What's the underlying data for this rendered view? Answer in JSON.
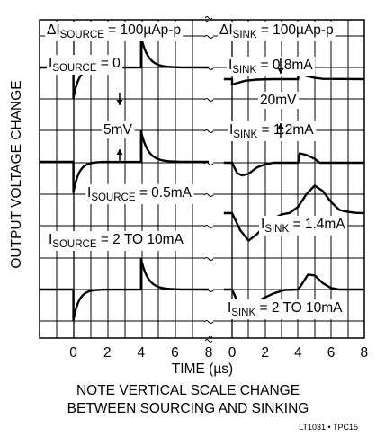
{
  "chart_data": {
    "type": "line",
    "y_axis_label": "OUTPUT VOLTAGE CHANGE",
    "x_axis_label": "TIME (µs)",
    "x_ticks_left": [
      "0",
      "2",
      "4",
      "6",
      "8"
    ],
    "x_ticks_right": [
      "0",
      "2",
      "4",
      "6",
      "8"
    ],
    "panel_headers": {
      "source": "ΔI_SOURCE = 100µAp-p",
      "sink": "ΔI_SINK = 100µAp-p"
    },
    "scale_labels": {
      "source": "5mV",
      "sink": "20mV"
    },
    "source_panel": {
      "x_range": [
        -2,
        8
      ],
      "series": [
        {
          "name": "I_SOURCE = 0",
          "t": [
            -2,
            0,
            0,
            0.3,
            0.6,
            1,
            1.5,
            2,
            4,
            4,
            4.3,
            4.7,
            5.2,
            6,
            8
          ],
          "v": [
            0,
            0,
            -3.8,
            -1.8,
            -0.9,
            -0.4,
            -0.1,
            0,
            0,
            3.8,
            1.8,
            0.8,
            0.3,
            0.05,
            0
          ]
        },
        {
          "name": "I_SOURCE = 0.5mA",
          "t": [
            -2,
            0,
            0,
            0.3,
            0.6,
            1,
            1.5,
            2,
            4,
            4,
            4.3,
            4.7,
            5.2,
            6,
            8
          ],
          "v": [
            0,
            0,
            -3.8,
            -1.8,
            -0.9,
            -0.4,
            -0.1,
            0,
            0,
            3.8,
            1.8,
            0.8,
            0.3,
            0.05,
            0
          ]
        },
        {
          "name": "I_SOURCE = 2 TO 10mA",
          "t": [
            -2,
            0,
            0,
            0.3,
            0.6,
            1,
            1.5,
            2,
            4,
            4,
            4.3,
            4.7,
            5.2,
            6,
            8
          ],
          "v": [
            0,
            0,
            -3.8,
            -1.8,
            -0.9,
            -0.4,
            -0.1,
            0,
            0,
            3.8,
            1.8,
            0.8,
            0.3,
            0.05,
            0
          ]
        }
      ]
    },
    "sink_panel": {
      "x_range": [
        -0.5,
        8
      ],
      "series": [
        {
          "name": "I_SINK = 0.8mA",
          "t": [
            -0.5,
            0,
            0,
            0.3,
            0.8,
            1.5,
            2.5,
            4,
            4,
            4.5,
            5,
            5.5,
            8
          ],
          "v": [
            0,
            0,
            -3.5,
            -2.5,
            -1.0,
            -0.3,
            0,
            0,
            3.5,
            2.0,
            0.8,
            0.2,
            0
          ]
        },
        {
          "name": "I_SINK = 1.2mA",
          "t": [
            -0.5,
            0,
            0.3,
            0.6,
            1.0,
            1.5,
            2.0,
            2.5,
            4,
            4.1,
            4.5,
            5,
            5.3,
            5.6,
            8
          ],
          "v": [
            0,
            0,
            -6.5,
            -8,
            -7,
            -3,
            -1.0,
            0,
            0,
            6,
            5,
            2.5,
            0,
            0,
            0
          ]
        },
        {
          "name": "I_SINK = 1.4mA",
          "t": [
            -0.5,
            0,
            0.5,
            1.0,
            1.5,
            2.0,
            2.5,
            3.0,
            3.5,
            4.0,
            4.5,
            5.0,
            5.5,
            6.0,
            6.5,
            7.0,
            7.5,
            8
          ],
          "v": [
            0,
            0,
            -11,
            -17.5,
            -13.5,
            -8,
            -3.5,
            -0.8,
            0.2,
            4,
            12,
            17.5,
            14,
            7,
            2,
            0.8,
            0.2,
            0
          ]
        },
        {
          "name": "I_SINK = 2 TO 10mA",
          "t": [
            -0.5,
            0,
            0.3,
            0.7,
            1.2,
            1.8,
            2.5,
            3.2,
            4,
            4.2,
            4.6,
            5.0,
            5.5,
            6.0,
            6.5,
            8
          ],
          "v": [
            0,
            0,
            -7,
            -11,
            -10,
            -6,
            -2.5,
            -0.3,
            0,
            3,
            9.5,
            9,
            4,
            1,
            0,
            0
          ]
        }
      ]
    },
    "grid": true
  },
  "notes": {
    "line1": "NOTE VERTICAL SCALE CHANGE",
    "line2": "BETWEEN SOURCING AND SINKING"
  },
  "credit": "LT1031 • TPC15"
}
